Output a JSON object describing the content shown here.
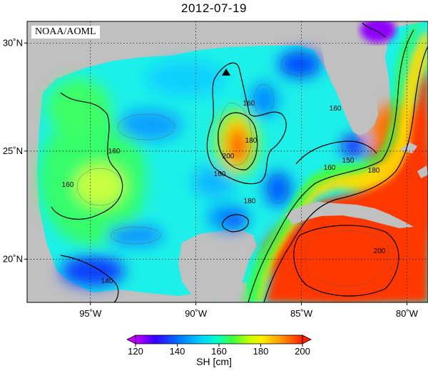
{
  "title": "2012-07-19",
  "credit": "NOAA/AOML",
  "variable_label": "SH [cm]",
  "lat_ticks": [
    {
      "value": 30,
      "label": "30˚N"
    },
    {
      "value": 25,
      "label": "25˚N"
    },
    {
      "value": 20,
      "label": "20˚N"
    }
  ],
  "lon_ticks": [
    {
      "value": -95,
      "label": "95˚W"
    },
    {
      "value": -90,
      "label": "90˚W"
    },
    {
      "value": -85,
      "label": "85˚W"
    },
    {
      "value": -80,
      "label": "80˚W"
    }
  ],
  "colorbar": {
    "min": 120,
    "max": 200,
    "tick_labels": [
      "120",
      "140",
      "160",
      "180",
      "200"
    ],
    "colors": [
      "#c400ff",
      "#2a00ff",
      "#0077ff",
      "#00d8ff",
      "#00ffb0",
      "#44ff44",
      "#c8ff00",
      "#ffee00",
      "#ff9900",
      "#ff2200"
    ]
  },
  "contour_labels": [
    "160",
    "160",
    "160",
    "160",
    "180",
    "200",
    "160",
    "180",
    "150",
    "180",
    "200",
    "140",
    "160"
  ],
  "colors": {
    "land": "#c0c0c0",
    "grid": "#000000"
  }
}
